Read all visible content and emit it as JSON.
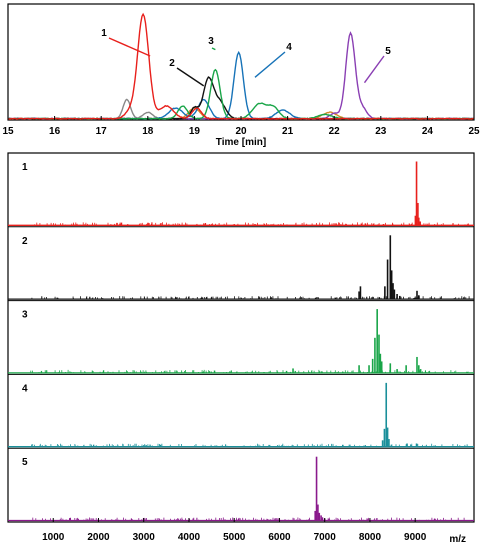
{
  "chart_data": [
    {
      "type": "line",
      "xlabel": "Time [min]",
      "ylabel": "",
      "xlim": [
        15,
        25
      ],
      "ylim": [
        0,
        1.05
      ],
      "xticks": [
        "15",
        "16",
        "17",
        "18",
        "19",
        "20",
        "21",
        "22",
        "23",
        "24",
        "25"
      ],
      "grid": false,
      "series": [
        {
          "label": "1",
          "color": "#e8201c",
          "peaks": [
            [
              17.9,
              0.98,
              0.12
            ],
            [
              18.4,
              0.12,
              0.15
            ],
            [
              19.05,
              0.1,
              0.1
            ],
            [
              17.6,
              0.06,
              0.1
            ]
          ],
          "label_at": [
            18.05,
            0.6
          ]
        },
        {
          "label": "2",
          "color": "#111111",
          "peaks": [
            [
              19.3,
              0.37,
              0.11
            ],
            [
              19.55,
              0.15,
              0.12
            ],
            [
              19.0,
              0.1,
              0.08
            ]
          ],
          "label_at": [
            19.2,
            0.32
          ]
        },
        {
          "label": "3",
          "color": "#19a548",
          "peaks": [
            [
              19.45,
              0.46,
              0.1
            ],
            [
              18.75,
              0.12,
              0.1
            ],
            [
              20.4,
              0.14,
              0.15
            ],
            [
              20.7,
              0.1,
              0.12
            ],
            [
              21.8,
              0.04,
              0.15
            ]
          ],
          "label_at": [
            19.45,
            0.66
          ]
        },
        {
          "label": "4",
          "color": "#1773b8",
          "peaks": [
            [
              19.95,
              0.62,
              0.1
            ],
            [
              19.2,
              0.18,
              0.12
            ],
            [
              18.6,
              0.1,
              0.15
            ],
            [
              20.9,
              0.08,
              0.15
            ]
          ],
          "label_at": [
            20.3,
            0.4
          ]
        },
        {
          "label": "5",
          "color": "#8a3fb3",
          "peaks": [
            [
              22.35,
              0.8,
              0.1
            ],
            [
              22.6,
              0.1,
              0.1
            ],
            [
              22.0,
              0.05,
              0.1
            ]
          ],
          "label_at": [
            22.65,
            0.35
          ]
        },
        {
          "label": "",
          "color": "#888888",
          "peaks": [
            [
              17.55,
              0.18,
              0.08
            ],
            [
              18.0,
              0.06,
              0.1
            ]
          ],
          "label_at": null
        },
        {
          "label": "",
          "color": "#d28a2a",
          "peaks": [
            [
              19.0,
              0.1,
              0.12
            ],
            [
              21.9,
              0.06,
              0.15
            ]
          ],
          "label_at": null
        }
      ]
    },
    {
      "type": "stacked-mass-spectra",
      "xlabel": "m/z",
      "xlim": [
        0,
        10300
      ],
      "xticks": [
        "1000",
        "2000",
        "3000",
        "4000",
        "5000",
        "6000",
        "7000",
        "8000",
        "9000"
      ],
      "panels": [
        {
          "label": "1",
          "color": "#e8201c",
          "peaks": [
            [
              9030,
              1.0
            ],
            [
              9060,
              0.35
            ],
            [
              9005,
              0.15
            ],
            [
              9080,
              0.12
            ],
            [
              9110,
              0.06
            ],
            [
              7900,
              0.03
            ],
            [
              8300,
              0.02
            ]
          ]
        },
        {
          "label": "2",
          "color": "#111111",
          "peaks": [
            [
              8450,
              1.0
            ],
            [
              8390,
              0.62
            ],
            [
              8480,
              0.45
            ],
            [
              8510,
              0.25
            ],
            [
              8540,
              0.15
            ],
            [
              8330,
              0.2
            ],
            [
              8600,
              0.08
            ],
            [
              8660,
              0.05
            ],
            [
              7790,
              0.2
            ],
            [
              7760,
              0.12
            ],
            [
              9040,
              0.13
            ],
            [
              9080,
              0.06
            ],
            [
              6800,
              0.02
            ]
          ]
        },
        {
          "label": "3",
          "color": "#19a548",
          "peaks": [
            [
              8160,
              1.0
            ],
            [
              8110,
              0.55
            ],
            [
              8200,
              0.6
            ],
            [
              8230,
              0.3
            ],
            [
              8260,
              0.18
            ],
            [
              8060,
              0.22
            ],
            [
              7980,
              0.12
            ],
            [
              7760,
              0.12
            ],
            [
              8450,
              0.15
            ],
            [
              8800,
              0.12
            ],
            [
              9040,
              0.25
            ],
            [
              9080,
              0.12
            ],
            [
              9120,
              0.06
            ],
            [
              6300,
              0.07
            ],
            [
              8600,
              0.06
            ]
          ]
        },
        {
          "label": "4",
          "color": "#1a8f9a",
          "peaks": [
            [
              8360,
              1.0
            ],
            [
              8320,
              0.28
            ],
            [
              8390,
              0.3
            ],
            [
              8420,
              0.12
            ],
            [
              8280,
              0.1
            ],
            [
              8820,
              0.05
            ],
            [
              9030,
              0.05
            ],
            [
              7400,
              0.03
            ],
            [
              6050,
              0.02
            ]
          ]
        },
        {
          "label": "5",
          "color": "#8a1a8c",
          "peaks": [
            [
              6820,
              1.0
            ],
            [
              6850,
              0.25
            ],
            [
              6790,
              0.15
            ],
            [
              6880,
              0.12
            ],
            [
              6920,
              0.08
            ],
            [
              6950,
              0.05
            ],
            [
              7000,
              0.03
            ],
            [
              7100,
              0.02
            ]
          ]
        }
      ]
    }
  ]
}
